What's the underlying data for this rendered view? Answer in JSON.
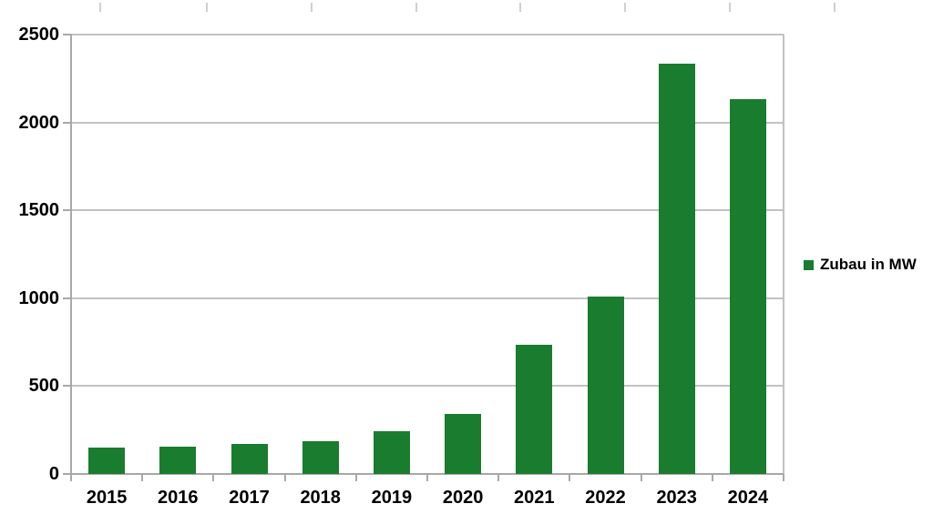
{
  "chart_data": {
    "type": "bar",
    "title": "",
    "categories": [
      "2015",
      "2016",
      "2017",
      "2018",
      "2019",
      "2020",
      "2021",
      "2022",
      "2023",
      "2024"
    ],
    "series": [
      {
        "name": "Zubau in MW",
        "color": "#1a7c2e",
        "values": [
          150,
          155,
          170,
          185,
          245,
          340,
          735,
          1010,
          2335,
          2135
        ]
      }
    ],
    "xlabel": "",
    "ylabel": "",
    "ylim": [
      0,
      2500
    ],
    "yticks": [
      0,
      500,
      1000,
      1500,
      2000,
      2500
    ],
    "ytick_labels": [
      "0",
      "500",
      "1000",
      "1500",
      "2000",
      "2500"
    ],
    "grid": true,
    "legend_position": "right-middle"
  },
  "legend": {
    "label": "Zubau in MW",
    "swatch_color": "#1a7c2e"
  },
  "colors": {
    "background": "#ffffff",
    "bar": "#1a7c2e",
    "gridline": "#c2c2c2",
    "axis": "#a8a8a8",
    "label_text": "#000000",
    "top_ticks": "#cfcfcf"
  }
}
